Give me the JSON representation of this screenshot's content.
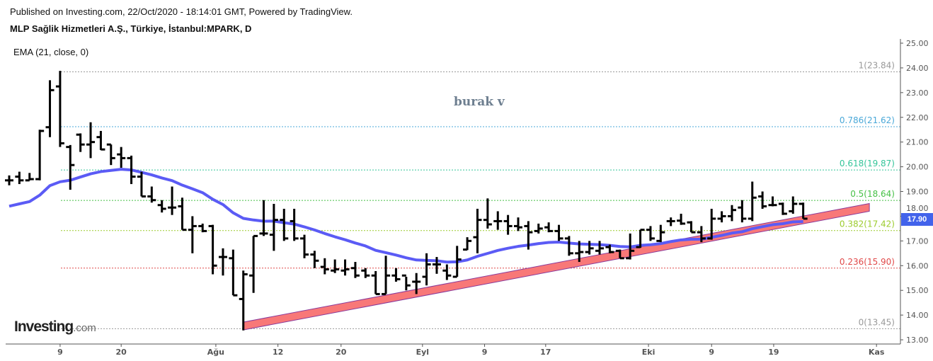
{
  "header": {
    "published": "Published on Investing.com, 22/Oct/2020 - 18:14:01 GMT, Powered by TradingView.",
    "title": "MLP Sağlik Hizmetleri A.Ş., Türkiye, İstanbul:MPARK, D",
    "indicator": "EMA (21, close, 0)"
  },
  "watermark": "burak v",
  "logo": {
    "main": "Investing",
    "suffix": ".com"
  },
  "price_tag": "17.90",
  "chart_data": {
    "type": "ohlc",
    "ylim": [
      13,
      25
    ],
    "y_ticks": [
      "13.00",
      "14.00",
      "15.00",
      "16.00",
      "17.00",
      "18.00",
      "19.00",
      "20.00",
      "21.00",
      "22.00",
      "23.00",
      "24.00",
      "25.00"
    ],
    "x_ticks": [
      {
        "label": "9",
        "bar": 5
      },
      {
        "label": "20",
        "bar": 11
      },
      {
        "label": "Ağu",
        "bar": 20.3
      },
      {
        "label": "12",
        "bar": 26.4
      },
      {
        "label": "20",
        "bar": 32.6
      },
      {
        "label": "Eyl",
        "bar": 40.6
      },
      {
        "label": "9",
        "bar": 46.7
      },
      {
        "label": "17",
        "bar": 52.7
      },
      {
        "label": "Eki",
        "bar": 62.8
      },
      {
        "label": "9",
        "bar": 69
      },
      {
        "label": "19",
        "bar": 75.1
      },
      {
        "label": "Kas",
        "bar": 85.2
      }
    ],
    "ohlc": [
      [
        19.45,
        19.65,
        19.25,
        19.45
      ],
      [
        19.6,
        19.8,
        19.3,
        19.45
      ],
      [
        19.45,
        19.75,
        19.45,
        19.5
      ],
      [
        19.5,
        21.5,
        19.45,
        21.45
      ],
      [
        21.6,
        23.5,
        21.2,
        23.1
      ],
      [
        23.25,
        23.88,
        20.8,
        20.95
      ],
      [
        20.8,
        20.88,
        19.07,
        20.07
      ],
      [
        21.3,
        21.35,
        20.6,
        20.9
      ],
      [
        20.9,
        21.8,
        20.35,
        21.0
      ],
      [
        21.2,
        21.45,
        20.68,
        20.7
      ],
      [
        20.9,
        20.9,
        20.07,
        20.35
      ],
      [
        20.5,
        20.8,
        19.96,
        20.35
      ],
      [
        20.35,
        20.45,
        19.3,
        19.6
      ],
      [
        19.6,
        19.8,
        18.8,
        18.8
      ],
      [
        18.8,
        19.2,
        18.55,
        18.65
      ],
      [
        18.45,
        18.65,
        18.15,
        18.3
      ],
      [
        18.35,
        19.2,
        18.05,
        18.35
      ],
      [
        18.4,
        18.75,
        17.45,
        17.45
      ],
      [
        17.45,
        18.0,
        16.5,
        17.6
      ],
      [
        17.6,
        17.7,
        17.35,
        17.4
      ],
      [
        17.6,
        17.65,
        15.65,
        16.0
      ],
      [
        16.35,
        16.7,
        15.6,
        16.35
      ],
      [
        16.3,
        16.65,
        14.8,
        14.8
      ],
      [
        14.65,
        15.8,
        13.38,
        15.65
      ],
      [
        15.6,
        17.2,
        14.9,
        17.2
      ],
      [
        17.3,
        18.65,
        17.2,
        17.3
      ],
      [
        17.25,
        18.5,
        16.6,
        17.85
      ],
      [
        17.85,
        18.3,
        17.0,
        17.1
      ],
      [
        17.8,
        18.3,
        17.0,
        17.1
      ],
      [
        17.1,
        17.25,
        16.3,
        16.45
      ],
      [
        16.45,
        16.6,
        15.9,
        16.2
      ],
      [
        15.95,
        16.3,
        15.65,
        15.85
      ],
      [
        15.8,
        16.25,
        15.7,
        15.85
      ],
      [
        15.8,
        16.25,
        15.6,
        15.85
      ],
      [
        15.9,
        16.15,
        15.5,
        15.6
      ],
      [
        15.8,
        15.9,
        15.5,
        15.6
      ],
      [
        15.6,
        15.78,
        14.85,
        14.85
      ],
      [
        14.85,
        16.4,
        14.85,
        15.6
      ],
      [
        15.6,
        15.9,
        15.35,
        15.45
      ],
      [
        15.6,
        15.55,
        15.0,
        15.2
      ],
      [
        15.35,
        15.7,
        14.85,
        15.35
      ],
      [
        15.55,
        16.5,
        15.2,
        16.05
      ],
      [
        16.05,
        16.35,
        15.67,
        16.05
      ],
      [
        15.8,
        16.05,
        15.42,
        15.6
      ],
      [
        15.55,
        16.8,
        15.55,
        16.25
      ],
      [
        16.65,
        17.15,
        16.63,
        17.0
      ],
      [
        17.15,
        18.3,
        16.5,
        17.85
      ],
      [
        17.85,
        18.72,
        17.5,
        17.67
      ],
      [
        17.8,
        18.2,
        17.45,
        17.8
      ],
      [
        17.8,
        18.05,
        17.25,
        17.6
      ],
      [
        17.6,
        17.95,
        17.4,
        17.55
      ],
      [
        17.6,
        17.8,
        16.65,
        17.35
      ],
      [
        17.4,
        17.7,
        17.3,
        17.5
      ],
      [
        17.55,
        17.75,
        17.35,
        17.4
      ],
      [
        17.4,
        17.65,
        17.0,
        17.1
      ],
      [
        17.1,
        17.2,
        16.4,
        16.5
      ],
      [
        16.5,
        17.0,
        16.15,
        16.55
      ],
      [
        16.55,
        17.0,
        16.45,
        16.7
      ],
      [
        16.6,
        17.0,
        16.45,
        16.7
      ],
      [
        16.75,
        16.85,
        16.5,
        16.55
      ],
      [
        16.6,
        16.65,
        16.3,
        16.3
      ],
      [
        16.3,
        17.3,
        16.25,
        16.6
      ],
      [
        16.75,
        17.45,
        16.72,
        17.45
      ],
      [
        17.45,
        17.6,
        17.0,
        17.1
      ],
      [
        17.0,
        17.65,
        16.95,
        17.35
      ],
      [
        17.8,
        17.95,
        17.6,
        17.8
      ],
      [
        17.82,
        18.1,
        17.65,
        17.7
      ],
      [
        17.75,
        17.8,
        17.35,
        17.35
      ],
      [
        17.35,
        17.6,
        16.95,
        17.1
      ],
      [
        17.1,
        18.3,
        17.05,
        17.9
      ],
      [
        17.9,
        18.2,
        17.75,
        18.0
      ],
      [
        18.0,
        18.45,
        17.8,
        18.25
      ],
      [
        18.35,
        18.65,
        17.75,
        17.9
      ],
      [
        17.9,
        19.4,
        17.8,
        18.75
      ],
      [
        18.8,
        19.0,
        18.3,
        18.4
      ],
      [
        18.45,
        18.8,
        18.4,
        18.45
      ],
      [
        18.5,
        18.55,
        18.05,
        18.1
      ],
      [
        18.2,
        18.8,
        18.1,
        18.5
      ],
      [
        18.5,
        18.55,
        17.9,
        17.9
      ]
    ],
    "ema": {
      "period": 21,
      "start": 18.3,
      "color": "#5b5bf5"
    },
    "trendline": {
      "from": [
        23,
        13.4
      ],
      "to": [
        84.5,
        18.2
      ],
      "color": "#f87878"
    },
    "fib_levels": [
      {
        "ratio": "1",
        "price": 23.84,
        "label": "1(23.84)",
        "color": "#999999"
      },
      {
        "ratio": "0.786",
        "price": 21.62,
        "label": "0.786(21.62)",
        "color": "#4aa8d8"
      },
      {
        "ratio": "0.618",
        "price": 19.87,
        "label": "0.618(19.87)",
        "color": "#35c59a"
      },
      {
        "ratio": "0.5",
        "price": 18.64,
        "label": "0.5(18.64)",
        "color": "#46c046"
      },
      {
        "ratio": "0.382",
        "price": 17.42,
        "label": "0.382(17.42)",
        "color": "#9ccc2e"
      },
      {
        "ratio": "0.236",
        "price": 15.9,
        "label": "0.236(15.90)",
        "color": "#e04848"
      },
      {
        "ratio": "0",
        "price": 13.45,
        "label": "0(13.45)",
        "color": "#999999"
      }
    ]
  }
}
